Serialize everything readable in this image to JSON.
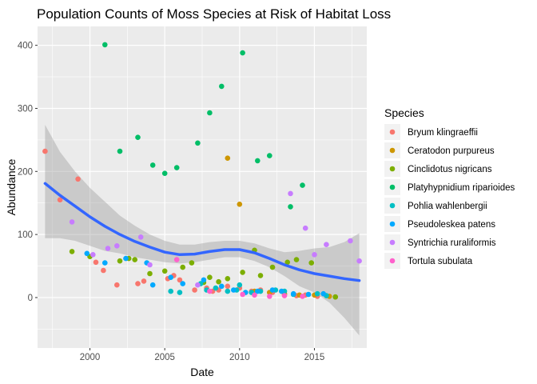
{
  "chart_data": {
    "type": "scatter",
    "title": "Population Counts of Moss Species at Risk of Habitat Loss",
    "xlabel": "Date",
    "ylabel": "Abundance",
    "xlim": [
      1996.5,
      2018.5
    ],
    "ylim": [
      -80,
      430
    ],
    "x_ticks": [
      2000,
      2005,
      2010,
      2015
    ],
    "y_ticks": [
      0,
      100,
      200,
      300,
      400
    ],
    "grid": true,
    "legend": {
      "title": "Species",
      "position": "right"
    },
    "series": [
      {
        "name": "Bryum klingraeffii",
        "color": "#F8766D",
        "points": [
          [
            1997.0,
            232
          ],
          [
            1998.0,
            155
          ],
          [
            1999.2,
            188
          ],
          [
            2000.4,
            56
          ],
          [
            2000.9,
            43
          ],
          [
            2001.8,
            20
          ],
          [
            2003.2,
            22
          ],
          [
            2003.6,
            26
          ],
          [
            2005.2,
            30
          ],
          [
            2005.6,
            35
          ],
          [
            2006.0,
            28
          ],
          [
            2007.0,
            12
          ],
          [
            2007.8,
            15
          ],
          [
            2008.2,
            10
          ],
          [
            2008.6,
            12
          ],
          [
            2009.2,
            18
          ],
          [
            2010.0,
            15
          ],
          [
            2010.8,
            10
          ],
          [
            2011.4,
            12
          ],
          [
            2012.2,
            8
          ],
          [
            2013.0,
            5
          ],
          [
            2013.8,
            3
          ],
          [
            2014.4,
            4
          ],
          [
            2015.2,
            2
          ]
        ]
      },
      {
        "name": "Ceratodon purpureus",
        "color": "#CD9600",
        "points": [
          [
            2009.2,
            221
          ],
          [
            2010.0,
            148
          ],
          [
            2011.0,
            10
          ],
          [
            2012.0,
            8
          ],
          [
            2013.0,
            6
          ],
          [
            2014.0,
            4
          ],
          [
            2015.0,
            4
          ],
          [
            2016.0,
            2
          ],
          [
            2016.4,
            1
          ]
        ]
      },
      {
        "name": "Cinclidotus nigricans",
        "color": "#7CAE00",
        "points": [
          [
            1998.8,
            73
          ],
          [
            2000.0,
            65
          ],
          [
            2002.0,
            58
          ],
          [
            2002.6,
            62
          ],
          [
            2003.0,
            60
          ],
          [
            2004.0,
            38
          ],
          [
            2005.0,
            42
          ],
          [
            2006.2,
            48
          ],
          [
            2006.8,
            55
          ],
          [
            2007.6,
            24
          ],
          [
            2008.0,
            32
          ],
          [
            2008.6,
            25
          ],
          [
            2009.2,
            30
          ],
          [
            2010.2,
            40
          ],
          [
            2011.0,
            75
          ],
          [
            2011.4,
            35
          ],
          [
            2012.2,
            48
          ],
          [
            2013.2,
            56
          ],
          [
            2013.8,
            60
          ],
          [
            2014.8,
            55
          ],
          [
            2016.4,
            1
          ]
        ]
      },
      {
        "name": "Platyhypnidium riparioides",
        "color": "#00BE67",
        "points": [
          [
            2001.0,
            401
          ],
          [
            2002.0,
            232
          ],
          [
            2003.2,
            254
          ],
          [
            2004.2,
            210
          ],
          [
            2005.0,
            197
          ],
          [
            2005.8,
            206
          ],
          [
            2007.2,
            245
          ],
          [
            2008.0,
            293
          ],
          [
            2008.8,
            335
          ],
          [
            2010.2,
            388
          ],
          [
            2011.2,
            217
          ],
          [
            2012.0,
            225
          ],
          [
            2013.4,
            144
          ],
          [
            2014.2,
            178
          ]
        ]
      },
      {
        "name": "Pohlia wahlenbergii",
        "color": "#00BFC4",
        "points": [
          [
            2005.4,
            10
          ],
          [
            2006.0,
            8
          ],
          [
            2007.4,
            22
          ],
          [
            2007.8,
            12
          ],
          [
            2008.4,
            15
          ],
          [
            2009.2,
            10
          ],
          [
            2009.8,
            12
          ],
          [
            2010.0,
            20
          ],
          [
            2010.8,
            8
          ],
          [
            2011.4,
            10
          ],
          [
            2012.4,
            12
          ],
          [
            2013.0,
            10
          ],
          [
            2013.6,
            5
          ],
          [
            2015.2,
            6
          ],
          [
            2015.8,
            3
          ]
        ]
      },
      {
        "name": "Pseudoleskea patens",
        "color": "#00A9FF",
        "points": [
          [
            1999.8,
            70
          ],
          [
            2001.0,
            55
          ],
          [
            2002.4,
            62
          ],
          [
            2003.8,
            55
          ],
          [
            2004.2,
            20
          ],
          [
            2005.4,
            32
          ],
          [
            2006.2,
            22
          ],
          [
            2007.6,
            28
          ],
          [
            2008.8,
            18
          ],
          [
            2009.6,
            12
          ],
          [
            2010.4,
            8
          ],
          [
            2011.2,
            10
          ],
          [
            2012.2,
            12
          ],
          [
            2012.8,
            10
          ],
          [
            2013.6,
            6
          ],
          [
            2014.6,
            5
          ],
          [
            2015.6,
            6
          ]
        ]
      },
      {
        "name": "Syntrichia ruraliformis",
        "color": "#C77CFF",
        "points": [
          [
            1998.8,
            120
          ],
          [
            2000.2,
            68
          ],
          [
            2001.2,
            78
          ],
          [
            2001.8,
            82
          ],
          [
            2003.4,
            96
          ],
          [
            2004.0,
            52
          ],
          [
            2007.2,
            20
          ],
          [
            2013.4,
            165
          ],
          [
            2014.4,
            110
          ],
          [
            2015.0,
            68
          ],
          [
            2015.8,
            84
          ],
          [
            2017.4,
            90
          ],
          [
            2018.0,
            58
          ]
        ]
      },
      {
        "name": "Tortula subulata",
        "color": "#FF61CC",
        "points": [
          [
            2005.8,
            60
          ],
          [
            2008.0,
            10
          ],
          [
            2010.2,
            5
          ],
          [
            2011.0,
            4
          ],
          [
            2012.0,
            2
          ],
          [
            2013.0,
            3
          ],
          [
            2014.2,
            2
          ]
        ]
      }
    ],
    "smooth": {
      "color": "#3366FF",
      "band_color": "#999999",
      "x": [
        1997.0,
        1998.0,
        1999.0,
        2000.0,
        2001.0,
        2002.0,
        2003.0,
        2004.0,
        2005.0,
        2006.0,
        2007.0,
        2008.0,
        2009.0,
        2010.0,
        2011.0,
        2012.0,
        2013.0,
        2014.0,
        2015.0,
        2016.0,
        2017.0,
        2018.0
      ],
      "y": [
        181,
        162,
        145,
        128,
        113,
        100,
        89,
        80,
        72,
        68,
        69,
        73,
        76,
        76,
        71,
        62,
        52,
        44,
        38,
        34,
        30,
        27
      ],
      "lower": [
        94,
        94,
        90,
        82,
        74,
        70,
        64,
        60,
        56,
        54,
        56,
        60,
        64,
        64,
        58,
        48,
        34,
        18,
        8,
        -8,
        -32,
        -60
      ],
      "upper": [
        274,
        231,
        200,
        174,
        152,
        130,
        114,
        100,
        90,
        84,
        84,
        88,
        90,
        90,
        86,
        78,
        72,
        74,
        78,
        80,
        88,
        102
      ]
    }
  }
}
